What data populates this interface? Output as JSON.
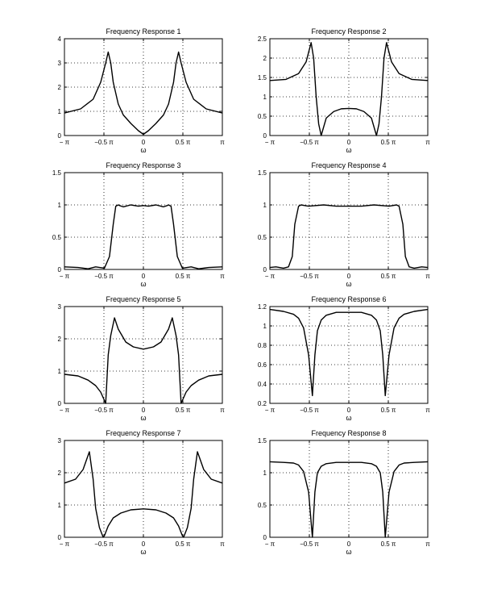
{
  "chart_data": [
    {
      "type": "line",
      "title": "Frequency Response 1",
      "xlabel": "ω",
      "xlim": [
        -3.1416,
        3.1416
      ],
      "ylim": [
        0,
        4
      ],
      "xticks": [
        -3.1416,
        -1.5708,
        0,
        1.5708,
        3.1416
      ],
      "xtick_labels": [
        "− π",
        "−0.5 π",
        "0",
        "0.5 π",
        "π"
      ],
      "yticks": [
        0,
        1,
        2,
        3,
        4
      ],
      "ytick_labels": [
        "0",
        "1",
        "2",
        "3",
        "4"
      ],
      "grid": true,
      "series": [
        {
          "x": [
            -3.1416,
            -2.5,
            -2.0,
            -1.7,
            -1.5,
            -1.4,
            -1.3,
            -1.2,
            -1.0,
            -0.8,
            -0.5,
            -0.2,
            0,
            0.2,
            0.5,
            0.8,
            1.0,
            1.2,
            1.3,
            1.4,
            1.5,
            1.7,
            2.0,
            2.5,
            3.1416
          ],
          "y": [
            0.93,
            1.1,
            1.5,
            2.2,
            3.0,
            3.45,
            3.0,
            2.2,
            1.3,
            0.85,
            0.5,
            0.2,
            0.05,
            0.2,
            0.5,
            0.85,
            1.3,
            2.2,
            3.0,
            3.45,
            3.0,
            2.2,
            1.5,
            1.1,
            0.93
          ]
        }
      ]
    },
    {
      "type": "line",
      "title": "Frequency Response 2",
      "xlabel": "ω",
      "xlim": [
        -3.1416,
        3.1416
      ],
      "ylim": [
        0,
        2.5
      ],
      "xticks": [
        -3.1416,
        -1.5708,
        0,
        1.5708,
        3.1416
      ],
      "xtick_labels": [
        "− π",
        "−0.5 π",
        "0",
        "0.5 π",
        "π"
      ],
      "yticks": [
        0,
        0.5,
        1,
        1.5,
        2,
        2.5
      ],
      "ytick_labels": [
        "0",
        "0.5",
        "1",
        "1.5",
        "2",
        "2.5"
      ],
      "grid": true,
      "series": [
        {
          "x": [
            -3.1416,
            -2.5,
            -2.0,
            -1.7,
            -1.5,
            -1.4,
            -1.3,
            -1.2,
            -1.1,
            -0.9,
            -0.6,
            -0.3,
            0,
            0.3,
            0.6,
            0.9,
            1.1,
            1.2,
            1.3,
            1.4,
            1.5,
            1.7,
            2.0,
            2.5,
            3.1416
          ],
          "y": [
            1.42,
            1.45,
            1.6,
            1.9,
            2.4,
            2.0,
            1.0,
            0.3,
            0.0,
            0.45,
            0.62,
            0.69,
            0.7,
            0.69,
            0.62,
            0.45,
            0.0,
            0.3,
            1.0,
            2.0,
            2.4,
            1.9,
            1.6,
            1.45,
            1.42
          ]
        }
      ]
    },
    {
      "type": "line",
      "title": "Frequency Response 3",
      "xlabel": "ω",
      "xlim": [
        -3.1416,
        3.1416
      ],
      "ylim": [
        0,
        1.5
      ],
      "xticks": [
        -3.1416,
        -1.5708,
        0,
        1.5708,
        3.1416
      ],
      "xtick_labels": [
        "− π",
        "−0.5 π",
        "0",
        "0.5 π",
        "π"
      ],
      "yticks": [
        0,
        0.5,
        1,
        1.5
      ],
      "ytick_labels": [
        "0",
        "0.5",
        "1",
        "1.5"
      ],
      "grid": true,
      "series": [
        {
          "x": [
            -3.1416,
            -2.6,
            -2.2,
            -1.9,
            -1.55,
            -1.35,
            -1.2,
            -1.1,
            -1.0,
            -0.95,
            -0.8,
            -0.5,
            -0.2,
            0,
            0.2,
            0.5,
            0.8,
            0.95,
            1.0,
            1.1,
            1.2,
            1.35,
            1.55,
            1.9,
            2.2,
            2.6,
            3.1416
          ],
          "y": [
            0.04,
            0.03,
            0.01,
            0.04,
            0.02,
            0.2,
            0.7,
            0.98,
            1.0,
            0.99,
            0.97,
            1.0,
            0.98,
            0.99,
            0.98,
            1.0,
            0.97,
            0.99,
            1.0,
            0.98,
            0.7,
            0.2,
            0.02,
            0.04,
            0.01,
            0.03,
            0.04
          ]
        }
      ]
    },
    {
      "type": "line",
      "title": "Frequency Response 4",
      "xlabel": "ω",
      "xlim": [
        -3.1416,
        3.1416
      ],
      "ylim": [
        0,
        1.5
      ],
      "xticks": [
        -3.1416,
        -1.5708,
        0,
        1.5708,
        3.1416
      ],
      "xtick_labels": [
        "− π",
        "−0.5 π",
        "0",
        "0.5 π",
        "π"
      ],
      "yticks": [
        0,
        0.5,
        1,
        1.5
      ],
      "ytick_labels": [
        "0",
        "0.5",
        "1",
        "1.5"
      ],
      "grid": true,
      "series": [
        {
          "x": [
            -3.1416,
            -2.9,
            -2.6,
            -2.4,
            -2.25,
            -2.15,
            -2.0,
            -1.9,
            -1.6,
            -1.0,
            -0.5,
            0,
            0.5,
            1.0,
            1.6,
            1.9,
            2.0,
            2.15,
            2.25,
            2.4,
            2.6,
            2.9,
            3.1416
          ],
          "y": [
            0.03,
            0.04,
            0.02,
            0.04,
            0.2,
            0.7,
            0.98,
            1.0,
            0.98,
            1.0,
            0.98,
            0.98,
            0.98,
            1.0,
            0.98,
            1.0,
            0.98,
            0.7,
            0.2,
            0.04,
            0.02,
            0.04,
            0.03
          ]
        }
      ]
    },
    {
      "type": "line",
      "title": "Frequency Response 5",
      "xlabel": "ω",
      "xlim": [
        -3.1416,
        3.1416
      ],
      "ylim": [
        0,
        3
      ],
      "xticks": [
        -3.1416,
        -1.5708,
        0,
        1.5708,
        3.1416
      ],
      "xtick_labels": [
        "− π",
        "−0.5 π",
        "0",
        "0.5 π",
        "π"
      ],
      "yticks": [
        0,
        1,
        2,
        3
      ],
      "ytick_labels": [
        "0",
        "1",
        "2",
        "3"
      ],
      "grid": true,
      "series": [
        {
          "x": [
            -3.1416,
            -2.6,
            -2.2,
            -1.9,
            -1.7,
            -1.5,
            -1.4,
            -1.3,
            -1.15,
            -1.0,
            -0.7,
            -0.4,
            0,
            0.4,
            0.7,
            1.0,
            1.15,
            1.3,
            1.4,
            1.5,
            1.7,
            1.9,
            2.2,
            2.6,
            3.1416
          ],
          "y": [
            0.9,
            0.85,
            0.72,
            0.55,
            0.35,
            0.0,
            1.5,
            2.1,
            2.65,
            2.3,
            1.9,
            1.75,
            1.68,
            1.75,
            1.9,
            2.3,
            2.65,
            2.1,
            1.5,
            0.0,
            0.35,
            0.55,
            0.72,
            0.85,
            0.9
          ]
        }
      ]
    },
    {
      "type": "line",
      "title": "Frequency Response 6",
      "xlabel": "ω",
      "xlim": [
        -3.1416,
        3.1416
      ],
      "ylim": [
        0.2,
        1.2
      ],
      "xticks": [
        -3.1416,
        -1.5708,
        0,
        1.5708,
        3.1416
      ],
      "xtick_labels": [
        "− π",
        "−0.5 π",
        "0",
        "0.5 π",
        "π"
      ],
      "yticks": [
        0.2,
        0.4,
        0.6,
        0.8,
        1,
        1.2
      ],
      "ytick_labels": [
        "0.2",
        "0.4",
        "0.6",
        "0.8",
        "1",
        "1.2"
      ],
      "grid": true,
      "series": [
        {
          "x": [
            -3.1416,
            -2.6,
            -2.2,
            -2.0,
            -1.8,
            -1.6,
            -1.45,
            -1.35,
            -1.25,
            -1.1,
            -0.9,
            -0.5,
            0,
            0.5,
            0.9,
            1.1,
            1.25,
            1.35,
            1.45,
            1.6,
            1.8,
            2.0,
            2.2,
            2.6,
            3.1416
          ],
          "y": [
            1.17,
            1.15,
            1.12,
            1.08,
            0.98,
            0.7,
            0.28,
            0.7,
            0.95,
            1.06,
            1.11,
            1.14,
            1.14,
            1.14,
            1.11,
            1.06,
            0.95,
            0.7,
            0.28,
            0.7,
            0.98,
            1.08,
            1.12,
            1.15,
            1.17
          ]
        }
      ]
    },
    {
      "type": "line",
      "title": "Frequency Response 7",
      "xlabel": "ω",
      "xlim": [
        -3.1416,
        3.1416
      ],
      "ylim": [
        0,
        3
      ],
      "xticks": [
        -3.1416,
        -1.5708,
        0,
        1.5708,
        3.1416
      ],
      "xtick_labels": [
        "− π",
        "−0.5 π",
        "0",
        "0.5 π",
        "π"
      ],
      "yticks": [
        0,
        1,
        2,
        3
      ],
      "ytick_labels": [
        "0",
        "1",
        "2",
        "3"
      ],
      "grid": true,
      "series": [
        {
          "x": [
            -3.1416,
            -2.7,
            -2.4,
            -2.15,
            -2.0,
            -1.9,
            -1.75,
            -1.6,
            -1.55,
            -1.4,
            -1.2,
            -0.9,
            -0.5,
            0,
            0.5,
            0.9,
            1.2,
            1.4,
            1.55,
            1.6,
            1.75,
            1.9,
            2.0,
            2.15,
            2.4,
            2.7,
            3.1416
          ],
          "y": [
            1.68,
            1.8,
            2.1,
            2.65,
            1.8,
            0.9,
            0.3,
            0.0,
            0.05,
            0.35,
            0.6,
            0.75,
            0.85,
            0.88,
            0.85,
            0.75,
            0.6,
            0.35,
            0.05,
            0.0,
            0.3,
            0.9,
            1.8,
            2.65,
            2.1,
            1.8,
            1.68
          ]
        }
      ]
    },
    {
      "type": "line",
      "title": "Frequency Response 8",
      "xlabel": "ω",
      "xlim": [
        -3.1416,
        3.1416
      ],
      "ylim": [
        0,
        1.5
      ],
      "xticks": [
        -3.1416,
        -1.5708,
        0,
        1.5708,
        3.1416
      ],
      "xtick_labels": [
        "− π",
        "−0.5 π",
        "0",
        "0.5 π",
        "π"
      ],
      "yticks": [
        0,
        0.5,
        1,
        1.5
      ],
      "ytick_labels": [
        "0",
        "0.5",
        "1",
        "1.5"
      ],
      "grid": true,
      "series": [
        {
          "x": [
            -3.1416,
            -2.6,
            -2.2,
            -2.0,
            -1.8,
            -1.6,
            -1.45,
            -1.35,
            -1.25,
            -1.1,
            -0.9,
            -0.5,
            0,
            0.5,
            0.9,
            1.1,
            1.25,
            1.35,
            1.45,
            1.6,
            1.8,
            2.0,
            2.2,
            2.6,
            3.1416
          ],
          "y": [
            1.17,
            1.16,
            1.15,
            1.12,
            1.02,
            0.7,
            0.0,
            0.7,
            1.0,
            1.1,
            1.14,
            1.16,
            1.16,
            1.16,
            1.14,
            1.1,
            1.0,
            0.7,
            0.0,
            0.7,
            1.02,
            1.12,
            1.15,
            1.16,
            1.17
          ]
        }
      ]
    }
  ]
}
